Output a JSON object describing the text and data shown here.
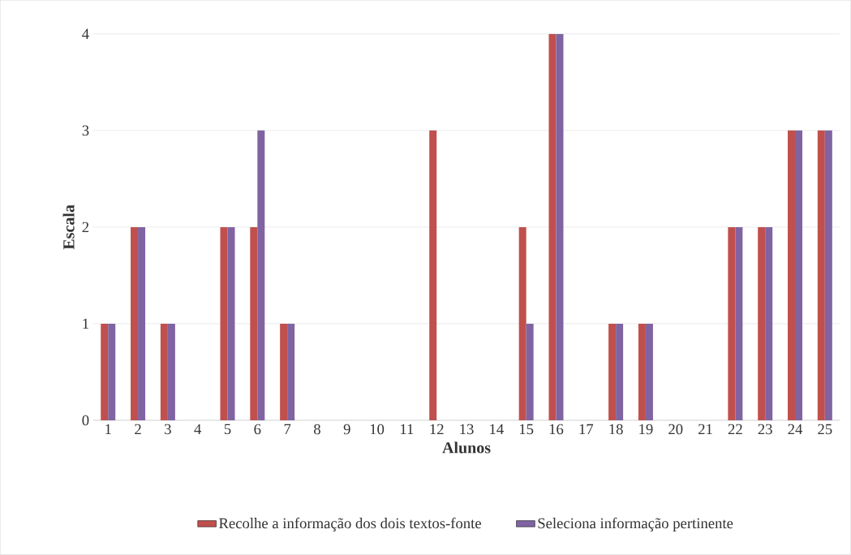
{
  "chart_data": {
    "type": "bar",
    "xlabel": "Alunos",
    "ylabel": "Escala",
    "categories": [
      "1",
      "2",
      "3",
      "4",
      "5",
      "6",
      "7",
      "8",
      "9",
      "10",
      "11",
      "12",
      "13",
      "14",
      "15",
      "16",
      "17",
      "18",
      "19",
      "20",
      "21",
      "22",
      "23",
      "24",
      "25"
    ],
    "series": [
      {
        "name": "Recolhe a informação dos dois textos-fonte",
        "color": "#c0504d",
        "values": [
          1,
          2,
          1,
          0,
          2,
          2,
          1,
          0,
          0,
          0,
          0,
          3,
          0,
          0,
          2,
          4,
          0,
          1,
          1,
          0,
          0,
          2,
          2,
          3,
          3
        ]
      },
      {
        "name": "Seleciona informação pertinente",
        "color": "#8064a2",
        "values": [
          1,
          2,
          1,
          0,
          2,
          3,
          1,
          0,
          0,
          0,
          0,
          0,
          0,
          0,
          1,
          4,
          0,
          1,
          1,
          0,
          0,
          2,
          2,
          3,
          3
        ]
      }
    ],
    "ylim": [
      0,
      4
    ],
    "yticks": [
      0,
      1,
      2,
      3,
      4
    ],
    "grid": "y",
    "legend": "bottom"
  }
}
